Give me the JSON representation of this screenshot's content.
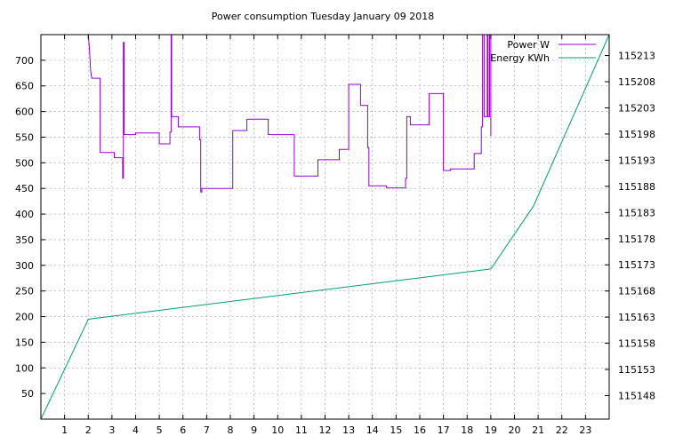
{
  "chart_data": {
    "type": "line",
    "title": "Power consumption Tuesday January 09 2018",
    "grid": true,
    "legend_position": "top-right",
    "x_range": [
      0,
      24
    ],
    "x_ticks": [
      1,
      2,
      3,
      4,
      5,
      6,
      7,
      8,
      9,
      10,
      11,
      12,
      13,
      14,
      15,
      16,
      17,
      18,
      19,
      20,
      21,
      22,
      23
    ],
    "y_range": [
      0,
      750
    ],
    "y_ticks": [
      50,
      100,
      150,
      200,
      250,
      300,
      350,
      400,
      450,
      500,
      550,
      600,
      650,
      700
    ],
    "y2_range": [
      115143.5,
      115217
    ],
    "y2_ticks": [
      115148,
      115153,
      115158,
      115163,
      115168,
      115173,
      115178,
      115183,
      115188,
      115193,
      115198,
      115203,
      115208,
      115213
    ],
    "series": [
      {
        "name": "Power W",
        "axis": "y",
        "color": "#9400d3",
        "points": [
          [
            2.0,
            750
          ],
          [
            2.05,
            720
          ],
          [
            2.1,
            680
          ],
          [
            2.15,
            665
          ],
          [
            2.5,
            665
          ],
          [
            2.5,
            520
          ],
          [
            3.1,
            520
          ],
          [
            3.1,
            510
          ],
          [
            3.45,
            510
          ],
          [
            3.45,
            470
          ],
          [
            3.48,
            470
          ],
          [
            3.48,
            735
          ],
          [
            3.52,
            735
          ],
          [
            3.52,
            555
          ],
          [
            4.0,
            555
          ],
          [
            4.0,
            558
          ],
          [
            5.0,
            558
          ],
          [
            5.0,
            537
          ],
          [
            5.45,
            537
          ],
          [
            5.45,
            560
          ],
          [
            5.5,
            560
          ],
          [
            5.5,
            750
          ],
          [
            5.52,
            750
          ],
          [
            5.52,
            590
          ],
          [
            5.8,
            590
          ],
          [
            5.8,
            570
          ],
          [
            6.7,
            570
          ],
          [
            6.7,
            545
          ],
          [
            6.75,
            545
          ],
          [
            6.75,
            443
          ],
          [
            6.8,
            443
          ],
          [
            6.8,
            450
          ],
          [
            8.1,
            450
          ],
          [
            8.1,
            563
          ],
          [
            8.7,
            563
          ],
          [
            8.7,
            585
          ],
          [
            9.6,
            585
          ],
          [
            9.6,
            555
          ],
          [
            10.7,
            555
          ],
          [
            10.7,
            474
          ],
          [
            11.7,
            474
          ],
          [
            11.7,
            506
          ],
          [
            12.6,
            506
          ],
          [
            12.6,
            526
          ],
          [
            13.0,
            526
          ],
          [
            13.0,
            653
          ],
          [
            13.5,
            653
          ],
          [
            13.5,
            612
          ],
          [
            13.8,
            612
          ],
          [
            13.8,
            530
          ],
          [
            13.85,
            530
          ],
          [
            13.85,
            455
          ],
          [
            14.6,
            455
          ],
          [
            14.6,
            451
          ],
          [
            15.4,
            451
          ],
          [
            15.4,
            470
          ],
          [
            15.45,
            470
          ],
          [
            15.45,
            590
          ],
          [
            15.6,
            590
          ],
          [
            15.6,
            574
          ],
          [
            16.4,
            574
          ],
          [
            16.4,
            635
          ],
          [
            17.0,
            635
          ],
          [
            17.0,
            485
          ],
          [
            17.3,
            485
          ],
          [
            17.3,
            488
          ],
          [
            18.3,
            488
          ],
          [
            18.3,
            518
          ],
          [
            18.6,
            518
          ],
          [
            18.6,
            570
          ],
          [
            18.65,
            570
          ],
          [
            18.65,
            750
          ],
          [
            18.72,
            750
          ],
          [
            18.72,
            590
          ],
          [
            18.85,
            590
          ],
          [
            18.85,
            750
          ],
          [
            18.88,
            750
          ],
          [
            18.88,
            590
          ],
          [
            18.95,
            590
          ],
          [
            18.95,
            750
          ],
          [
            19.0,
            750
          ],
          [
            19.0,
            552
          ]
        ]
      },
      {
        "name": "Energy KWh",
        "axis": "y2",
        "color": "#009e73",
        "points": [
          [
            0,
            115143.5
          ],
          [
            2.0,
            115162.6
          ],
          [
            19.0,
            115172.2
          ],
          [
            20.8,
            115184.2
          ],
          [
            24.0,
            115217
          ]
        ]
      }
    ]
  }
}
